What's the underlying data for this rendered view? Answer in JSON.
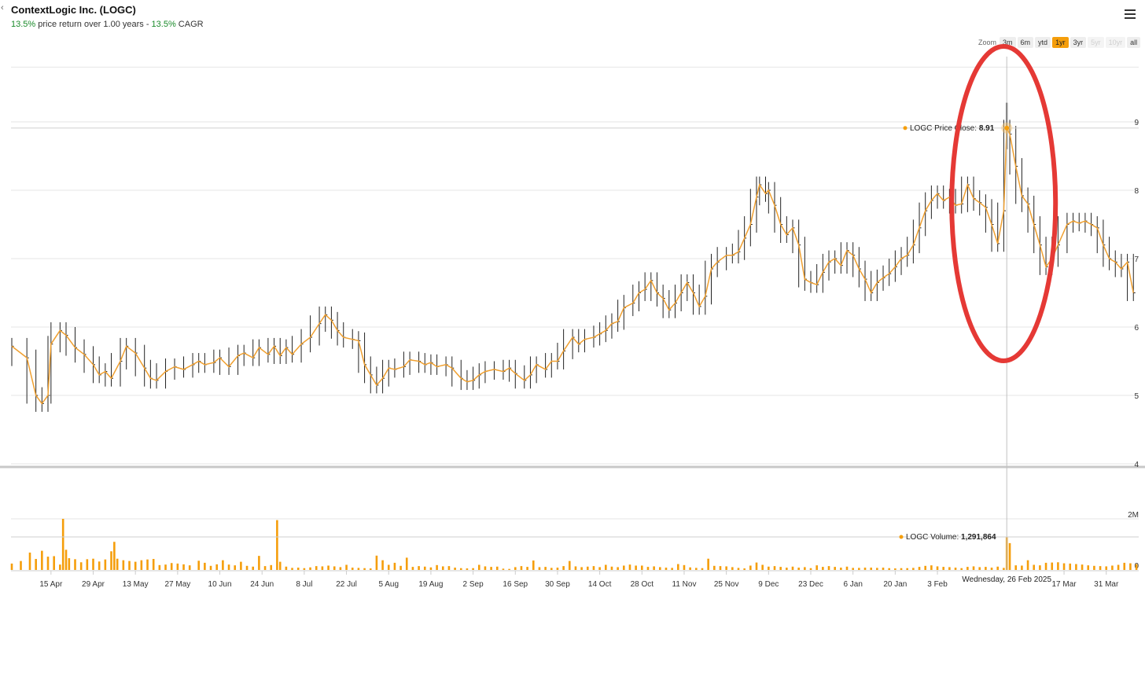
{
  "header": {
    "back": "‹",
    "title": "ContextLogic Inc. (LOGC)",
    "return_pct": "13.5%",
    "return_text": " price return over 1.00 years - ",
    "cagr_pct": "13.5%",
    "cagr_text": " CAGR"
  },
  "zoom": {
    "label": "Zoom",
    "buttons": [
      {
        "label": "3m",
        "state": "normal"
      },
      {
        "label": "6m",
        "state": "normal"
      },
      {
        "label": "ytd",
        "state": "normal"
      },
      {
        "label": "1yr",
        "state": "active"
      },
      {
        "label": "3yr",
        "state": "normal"
      },
      {
        "label": "5yr",
        "state": "disabled"
      },
      {
        "label": "10yr",
        "state": "disabled"
      },
      {
        "label": "all",
        "state": "normal"
      }
    ]
  },
  "colors": {
    "accent": "#f59e0b",
    "annotation": "#e53935",
    "positive": "#1a8a2a"
  },
  "tooltip": {
    "price_label": "LOGC Price Close: ",
    "price_value": "8.91",
    "volume_label": "LOGC Volume: ",
    "volume_value": "1,291,864",
    "date": "Wednesday, 26 Feb 2025"
  },
  "chart_data": {
    "type": "line",
    "title": "ContextLogic Inc. (LOGC)",
    "price_axis": {
      "ylim": [
        4,
        9.8
      ],
      "ticks": [
        "9",
        "8",
        "7",
        "6",
        "5",
        "4"
      ],
      "tick_values": [
        9,
        8,
        7,
        6,
        5,
        4
      ]
    },
    "volume_axis": {
      "ticks": [
        "2M",
        "0"
      ],
      "tick_values": [
        2000000,
        0
      ]
    },
    "x_ticks": [
      "15 Apr",
      "29 Apr",
      "13 May",
      "27 May",
      "10 Jun",
      "24 Jun",
      "8 Jul",
      "22 Jul",
      "5 Aug",
      "19 Aug",
      "2 Sep",
      "16 Sep",
      "30 Sep",
      "14 Oct",
      "28 Oct",
      "11 Nov",
      "25 Nov",
      "9 Dec",
      "23 Dec",
      "6 Jan",
      "20 Jan",
      "3 Feb",
      "17 Mar",
      "31 Mar"
    ],
    "x_tick_days": [
      13,
      27,
      41,
      55,
      69,
      83,
      97,
      111,
      125,
      139,
      153,
      167,
      181,
      195,
      209,
      223,
      237,
      251,
      265,
      279,
      293,
      307,
      349,
      363
    ],
    "highlight": {
      "date": "Wednesday, 26 Feb 2025",
      "day": 330,
      "close": 8.91,
      "volume": 1291864
    },
    "price_close": [
      [
        0,
        5.72
      ],
      [
        5,
        5.55
      ],
      [
        8,
        5.0
      ],
      [
        10,
        4.88
      ],
      [
        12,
        5.0
      ],
      [
        13,
        5.75
      ],
      [
        16,
        5.95
      ],
      [
        18,
        5.88
      ],
      [
        21,
        5.7
      ],
      [
        24,
        5.6
      ],
      [
        27,
        5.45
      ],
      [
        29,
        5.3
      ],
      [
        31,
        5.35
      ],
      [
        33,
        5.25
      ],
      [
        36,
        5.5
      ],
      [
        38,
        5.72
      ],
      [
        41,
        5.62
      ],
      [
        44,
        5.4
      ],
      [
        46,
        5.25
      ],
      [
        48,
        5.22
      ],
      [
        51,
        5.35
      ],
      [
        54,
        5.42
      ],
      [
        57,
        5.38
      ],
      [
        60,
        5.45
      ],
      [
        62,
        5.5
      ],
      [
        64,
        5.45
      ],
      [
        67,
        5.48
      ],
      [
        69,
        5.55
      ],
      [
        72,
        5.42
      ],
      [
        75,
        5.58
      ],
      [
        77,
        5.62
      ],
      [
        80,
        5.55
      ],
      [
        82,
        5.7
      ],
      [
        85,
        5.6
      ],
      [
        87,
        5.72
      ],
      [
        89,
        5.58
      ],
      [
        91,
        5.7
      ],
      [
        93,
        5.6
      ],
      [
        96,
        5.75
      ],
      [
        99,
        5.85
      ],
      [
        102,
        6.05
      ],
      [
        104,
        6.18
      ],
      [
        106,
        6.1
      ],
      [
        108,
        5.95
      ],
      [
        110,
        5.85
      ],
      [
        113,
        5.82
      ],
      [
        115,
        5.8
      ],
      [
        117,
        5.45
      ],
      [
        119,
        5.3
      ],
      [
        121,
        5.15
      ],
      [
        123,
        5.25
      ],
      [
        125,
        5.4
      ],
      [
        127,
        5.38
      ],
      [
        130,
        5.42
      ],
      [
        132,
        5.52
      ],
      [
        135,
        5.5
      ],
      [
        137,
        5.45
      ],
      [
        139,
        5.48
      ],
      [
        141,
        5.42
      ],
      [
        144,
        5.45
      ],
      [
        146,
        5.4
      ],
      [
        149,
        5.25
      ],
      [
        151,
        5.2
      ],
      [
        153,
        5.22
      ],
      [
        155,
        5.3
      ],
      [
        157,
        5.35
      ],
      [
        160,
        5.38
      ],
      [
        163,
        5.35
      ],
      [
        165,
        5.4
      ],
      [
        167,
        5.32
      ],
      [
        170,
        5.22
      ],
      [
        172,
        5.3
      ],
      [
        174,
        5.45
      ],
      [
        177,
        5.38
      ],
      [
        179,
        5.5
      ],
      [
        181,
        5.5
      ],
      [
        183,
        5.65
      ],
      [
        186,
        5.85
      ],
      [
        188,
        5.75
      ],
      [
        190,
        5.82
      ],
      [
        193,
        5.85
      ],
      [
        195,
        5.9
      ],
      [
        197,
        5.95
      ],
      [
        199,
        6.05
      ],
      [
        201,
        6.08
      ],
      [
        203,
        6.28
      ],
      [
        206,
        6.35
      ],
      [
        208,
        6.5
      ],
      [
        210,
        6.55
      ],
      [
        212,
        6.68
      ],
      [
        214,
        6.5
      ],
      [
        216,
        6.42
      ],
      [
        218,
        6.25
      ],
      [
        220,
        6.35
      ],
      [
        222,
        6.5
      ],
      [
        224,
        6.65
      ],
      [
        226,
        6.5
      ],
      [
        228,
        6.3
      ],
      [
        230,
        6.45
      ],
      [
        232,
        6.85
      ],
      [
        234,
        6.95
      ],
      [
        237,
        7.05
      ],
      [
        239,
        7.05
      ],
      [
        241,
        7.1
      ],
      [
        243,
        7.3
      ],
      [
        245,
        7.5
      ],
      [
        247,
        7.9
      ],
      [
        248,
        8.08
      ],
      [
        250,
        7.95
      ],
      [
        251,
        8.0
      ],
      [
        253,
        7.78
      ],
      [
        255,
        7.5
      ],
      [
        257,
        7.35
      ],
      [
        259,
        7.45
      ],
      [
        261,
        7.2
      ],
      [
        263,
        6.7
      ],
      [
        265,
        6.65
      ],
      [
        267,
        6.62
      ],
      [
        269,
        6.8
      ],
      [
        271,
        6.95
      ],
      [
        273,
        7.0
      ],
      [
        275,
        6.9
      ],
      [
        277,
        7.12
      ],
      [
        279,
        7.05
      ],
      [
        281,
        6.85
      ],
      [
        283,
        6.7
      ],
      [
        285,
        6.5
      ],
      [
        287,
        6.65
      ],
      [
        289,
        6.72
      ],
      [
        291,
        6.78
      ],
      [
        293,
        6.88
      ],
      [
        295,
        7.0
      ],
      [
        297,
        7.05
      ],
      [
        299,
        7.2
      ],
      [
        301,
        7.45
      ],
      [
        303,
        7.7
      ],
      [
        305,
        7.85
      ],
      [
        307,
        7.95
      ],
      [
        309,
        7.85
      ],
      [
        311,
        7.9
      ],
      [
        313,
        7.78
      ],
      [
        315,
        7.8
      ],
      [
        317,
        8.08
      ],
      [
        319,
        7.88
      ],
      [
        321,
        7.82
      ],
      [
        323,
        7.75
      ],
      [
        325,
        7.5
      ],
      [
        327,
        7.22
      ],
      [
        329,
        7.7
      ],
      [
        330,
        8.91
      ],
      [
        331,
        8.82
      ],
      [
        333,
        8.35
      ],
      [
        335,
        7.92
      ],
      [
        337,
        7.8
      ],
      [
        339,
        7.5
      ],
      [
        341,
        7.2
      ],
      [
        343,
        6.88
      ],
      [
        345,
        7.0
      ],
      [
        347,
        7.2
      ],
      [
        350,
        7.5
      ],
      [
        352,
        7.55
      ],
      [
        354,
        7.52
      ],
      [
        356,
        7.55
      ],
      [
        358,
        7.5
      ],
      [
        360,
        7.45
      ],
      [
        362,
        7.2
      ],
      [
        364,
        7.0
      ],
      [
        366,
        6.95
      ],
      [
        368,
        6.85
      ],
      [
        370,
        6.95
      ],
      [
        372,
        6.5
      ]
    ],
    "volume": [
      [
        0,
        250000
      ],
      [
        3,
        350000
      ],
      [
        6,
        680000
      ],
      [
        8,
        430000
      ],
      [
        10,
        750000
      ],
      [
        12,
        520000
      ],
      [
        14,
        540000
      ],
      [
        16,
        210000
      ],
      [
        17,
        2000000
      ],
      [
        18,
        790000
      ],
      [
        19,
        460000
      ],
      [
        21,
        420000
      ],
      [
        23,
        300000
      ],
      [
        25,
        420000
      ],
      [
        27,
        440000
      ],
      [
        29,
        330000
      ],
      [
        31,
        410000
      ],
      [
        33,
        730000
      ],
      [
        34,
        1100000
      ],
      [
        35,
        440000
      ],
      [
        37,
        380000
      ],
      [
        39,
        350000
      ],
      [
        41,
        320000
      ],
      [
        43,
        380000
      ],
      [
        45,
        410000
      ],
      [
        47,
        430000
      ],
      [
        49,
        190000
      ],
      [
        51,
        210000
      ],
      [
        53,
        270000
      ],
      [
        55,
        250000
      ],
      [
        57,
        220000
      ],
      [
        59,
        180000
      ],
      [
        62,
        360000
      ],
      [
        64,
        280000
      ],
      [
        66,
        160000
      ],
      [
        68,
        220000
      ],
      [
        70,
        380000
      ],
      [
        72,
        210000
      ],
      [
        74,
        180000
      ],
      [
        76,
        320000
      ],
      [
        78,
        160000
      ],
      [
        80,
        130000
      ],
      [
        82,
        550000
      ],
      [
        84,
        150000
      ],
      [
        86,
        190000
      ],
      [
        88,
        1950000
      ],
      [
        89,
        320000
      ],
      [
        91,
        130000
      ],
      [
        93,
        80000
      ],
      [
        95,
        90000
      ],
      [
        97,
        70000
      ],
      [
        99,
        100000
      ],
      [
        101,
        150000
      ],
      [
        103,
        140000
      ],
      [
        105,
        170000
      ],
      [
        107,
        140000
      ],
      [
        109,
        110000
      ],
      [
        111,
        200000
      ],
      [
        113,
        90000
      ],
      [
        115,
        80000
      ],
      [
        117,
        70000
      ],
      [
        119,
        60000
      ],
      [
        121,
        560000
      ],
      [
        123,
        380000
      ],
      [
        125,
        200000
      ],
      [
        127,
        280000
      ],
      [
        129,
        160000
      ],
      [
        131,
        480000
      ],
      [
        133,
        120000
      ],
      [
        135,
        150000
      ],
      [
        137,
        130000
      ],
      [
        139,
        100000
      ],
      [
        141,
        190000
      ],
      [
        143,
        140000
      ],
      [
        145,
        150000
      ],
      [
        147,
        90000
      ],
      [
        149,
        70000
      ],
      [
        151,
        60000
      ],
      [
        153,
        70000
      ],
      [
        155,
        200000
      ],
      [
        157,
        140000
      ],
      [
        159,
        120000
      ],
      [
        161,
        130000
      ],
      [
        163,
        50000
      ],
      [
        165,
        40000
      ],
      [
        167,
        110000
      ],
      [
        169,
        150000
      ],
      [
        171,
        120000
      ],
      [
        173,
        370000
      ],
      [
        175,
        110000
      ],
      [
        177,
        120000
      ],
      [
        179,
        80000
      ],
      [
        181,
        90000
      ],
      [
        183,
        150000
      ],
      [
        185,
        350000
      ],
      [
        187,
        140000
      ],
      [
        189,
        110000
      ],
      [
        191,
        130000
      ],
      [
        193,
        150000
      ],
      [
        195,
        110000
      ],
      [
        197,
        200000
      ],
      [
        199,
        130000
      ],
      [
        201,
        110000
      ],
      [
        203,
        170000
      ],
      [
        205,
        210000
      ],
      [
        207,
        170000
      ],
      [
        209,
        170000
      ],
      [
        211,
        120000
      ],
      [
        213,
        140000
      ],
      [
        215,
        110000
      ],
      [
        217,
        90000
      ],
      [
        219,
        80000
      ],
      [
        221,
        230000
      ],
      [
        223,
        190000
      ],
      [
        225,
        100000
      ],
      [
        227,
        80000
      ],
      [
        229,
        70000
      ],
      [
        231,
        440000
      ],
      [
        233,
        160000
      ],
      [
        235,
        150000
      ],
      [
        237,
        140000
      ],
      [
        239,
        110000
      ],
      [
        241,
        80000
      ],
      [
        243,
        60000
      ],
      [
        245,
        170000
      ],
      [
        247,
        290000
      ],
      [
        249,
        200000
      ],
      [
        251,
        130000
      ],
      [
        253,
        150000
      ],
      [
        255,
        120000
      ],
      [
        257,
        90000
      ],
      [
        259,
        130000
      ],
      [
        261,
        90000
      ],
      [
        263,
        110000
      ],
      [
        265,
        70000
      ],
      [
        267,
        180000
      ],
      [
        269,
        120000
      ],
      [
        271,
        150000
      ],
      [
        273,
        120000
      ],
      [
        275,
        90000
      ],
      [
        277,
        130000
      ],
      [
        279,
        80000
      ],
      [
        281,
        80000
      ],
      [
        283,
        90000
      ],
      [
        285,
        90000
      ],
      [
        287,
        80000
      ],
      [
        289,
        90000
      ],
      [
        291,
        70000
      ],
      [
        293,
        60000
      ],
      [
        295,
        70000
      ],
      [
        297,
        70000
      ],
      [
        299,
        80000
      ],
      [
        301,
        120000
      ],
      [
        303,
        160000
      ],
      [
        305,
        180000
      ],
      [
        307,
        140000
      ],
      [
        309,
        120000
      ],
      [
        311,
        110000
      ],
      [
        313,
        90000
      ],
      [
        315,
        70000
      ],
      [
        317,
        120000
      ],
      [
        319,
        140000
      ],
      [
        321,
        110000
      ],
      [
        323,
        120000
      ],
      [
        325,
        90000
      ],
      [
        327,
        130000
      ],
      [
        329,
        80000
      ],
      [
        330,
        1291864
      ],
      [
        331,
        1050000
      ],
      [
        333,
        180000
      ],
      [
        335,
        170000
      ],
      [
        337,
        380000
      ],
      [
        339,
        200000
      ],
      [
        341,
        180000
      ],
      [
        343,
        280000
      ],
      [
        345,
        290000
      ],
      [
        347,
        300000
      ],
      [
        349,
        260000
      ],
      [
        351,
        250000
      ],
      [
        353,
        230000
      ],
      [
        355,
        210000
      ],
      [
        357,
        180000
      ],
      [
        359,
        160000
      ],
      [
        361,
        150000
      ],
      [
        363,
        140000
      ],
      [
        365,
        170000
      ],
      [
        367,
        200000
      ],
      [
        369,
        280000
      ],
      [
        371,
        260000
      ],
      [
        373,
        230000
      ]
    ]
  }
}
